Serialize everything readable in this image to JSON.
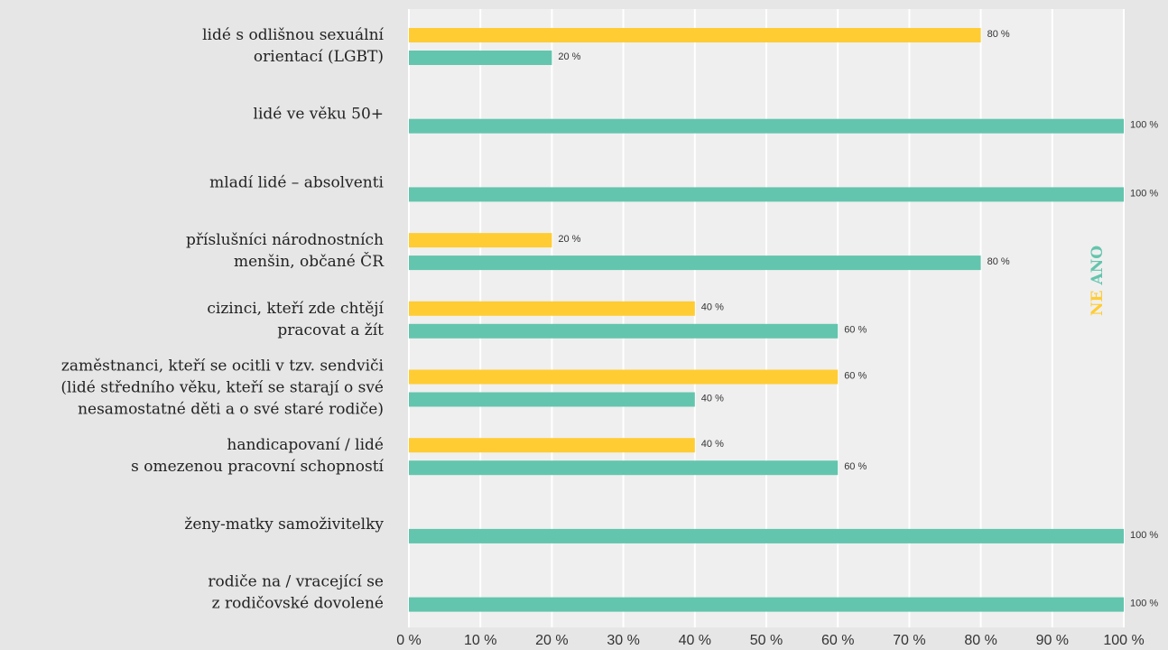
{
  "chart_data": {
    "type": "bar",
    "orientation": "horizontal",
    "categories": [
      [
        "lidé s odlišnou sexuální",
        "orientací (LGBT)"
      ],
      [
        "lidé ve věku 50+"
      ],
      [
        "mladí lidé – absolventi"
      ],
      [
        "příslušníci národnostních",
        "menšin, občané ČR"
      ],
      [
        "cizinci, kteří zde chtějí",
        "pracovat a žít"
      ],
      [
        "zaměstnanci, kteří se ocitli v tzv. sendviči",
        "(lidé středního věku, kteří se starají o své",
        "nesamostatné děti a o své staré rodiče)"
      ],
      [
        "handicapovaní / lidé",
        "s omezenou pracovní schopností"
      ],
      [
        "ženy-matky samoživitelky"
      ],
      [
        "rodiče na / vracející se",
        "z rodičovské dovolené"
      ]
    ],
    "series": [
      {
        "name": "NE",
        "color": "#ffcc33",
        "values": [
          80,
          null,
          null,
          20,
          40,
          60,
          40,
          null,
          null
        ],
        "value_labels": [
          "80 %",
          null,
          null,
          "20 %",
          "40 %",
          "60 %",
          "40 %",
          null,
          null
        ]
      },
      {
        "name": "ANO",
        "color": "#63c5ad",
        "values": [
          20,
          100,
          100,
          80,
          60,
          40,
          60,
          100,
          100
        ],
        "value_labels": [
          "20 %",
          "100 %",
          "100 %",
          "80 %",
          "60 %",
          "40 %",
          "60 %",
          "100 %",
          "100 %"
        ]
      }
    ],
    "xlim": [
      0,
      100
    ],
    "xticks": [
      {
        "value": 0,
        "label": "0 %"
      },
      {
        "value": 10,
        "label": "10 %"
      },
      {
        "value": 20,
        "label": "20 %"
      },
      {
        "value": 30,
        "label": "30 %"
      },
      {
        "value": 40,
        "label": "40 %"
      },
      {
        "value": 50,
        "label": "50 %"
      },
      {
        "value": 60,
        "label": "60 %"
      },
      {
        "value": 70,
        "label": "70 %"
      },
      {
        "value": 80,
        "label": "80 %"
      },
      {
        "value": 90,
        "label": "90 %"
      },
      {
        "value": 100,
        "label": "100 %"
      }
    ],
    "grid": true
  }
}
